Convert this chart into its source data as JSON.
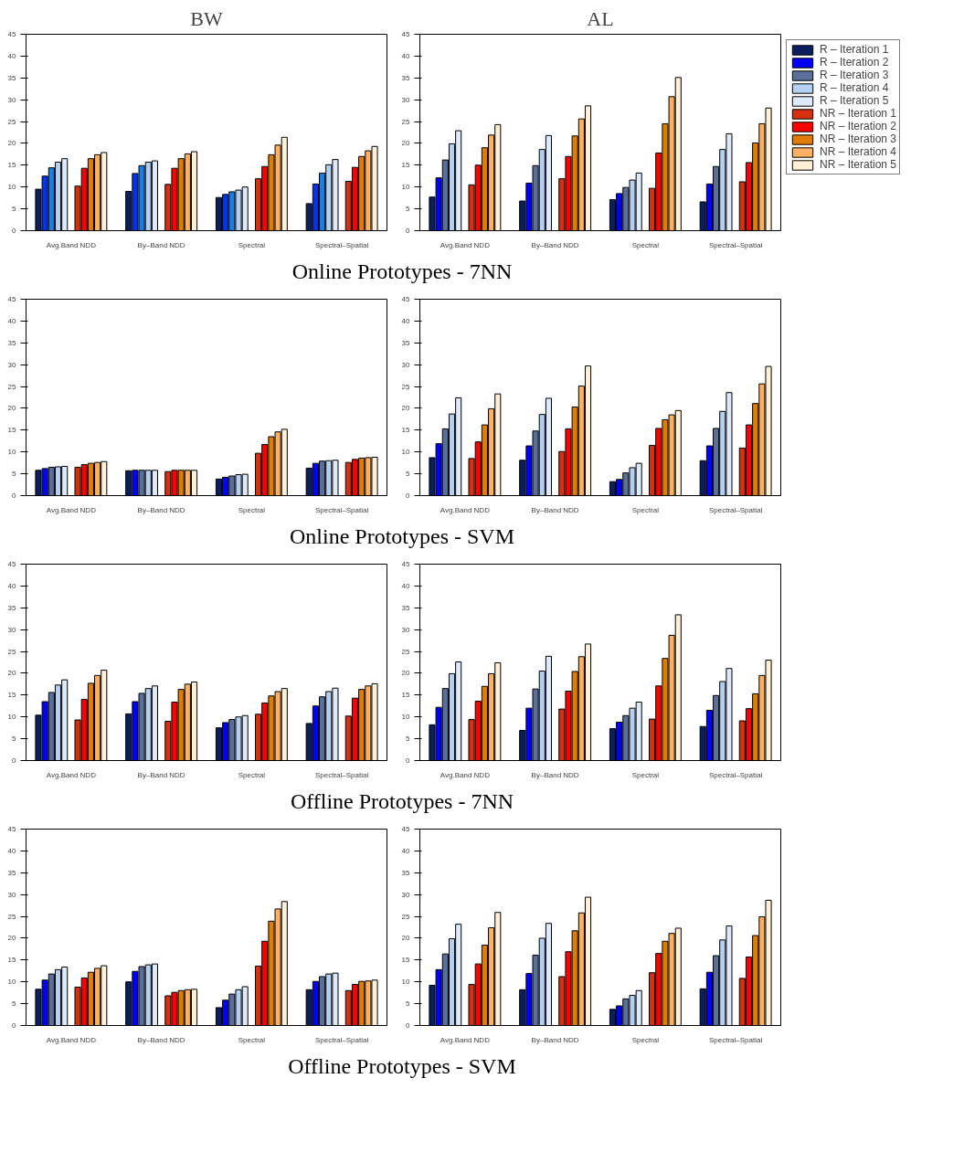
{
  "chart_data": [
    {
      "type": "bar",
      "title": "BW",
      "annotations": [
        "Online Prototypes - 7NN"
      ],
      "categories": [
        "Avg.Band NDD",
        "By–Band NDD",
        "Spectral",
        "Spectral–Spatial"
      ],
      "ylim": [
        0,
        45
      ],
      "yticks": [
        0,
        5,
        10,
        15,
        20,
        25,
        30,
        35,
        40,
        45
      ],
      "series": [
        {
          "color": "#0b1f5e",
          "values": [
            9.5,
            9.0,
            7.6,
            6.2
          ]
        },
        {
          "color": "#0033ee",
          "values": [
            12.5,
            13.1,
            8.3,
            10.7
          ]
        },
        {
          "color": "#1a7fe5",
          "values": [
            14.4,
            14.9,
            8.9,
            13.2
          ]
        },
        {
          "color": "#b4cff0",
          "values": [
            15.7,
            15.7,
            9.3,
            15.1
          ]
        },
        {
          "color": "#deeafa",
          "values": [
            16.5,
            16.0,
            10.0,
            16.3
          ]
        },
        {
          "color": "#d63010",
          "values": [
            10.2,
            10.6,
            11.9,
            11.3
          ]
        },
        {
          "color": "#ff0000",
          "values": [
            14.3,
            14.3,
            14.7,
            14.5
          ]
        },
        {
          "color": "#e07c00",
          "values": [
            16.5,
            16.5,
            17.4,
            17.0
          ]
        },
        {
          "color": "#ffb060",
          "values": [
            17.4,
            17.6,
            19.6,
            18.3
          ]
        },
        {
          "color": "#fff0d8",
          "values": [
            17.9,
            18.1,
            21.4,
            19.3
          ]
        }
      ]
    },
    {
      "type": "bar",
      "title": "AL",
      "categories": [
        "Avg.Band NDD",
        "By–Band NDD",
        "Spectral",
        "Spectral–Spatial"
      ],
      "ylim": [
        0,
        45
      ],
      "yticks": [
        0,
        5,
        10,
        15,
        20,
        25,
        30,
        35,
        40,
        45
      ],
      "legend": "right",
      "series": [
        {
          "name": "R – Iteration 1",
          "color": "#0b1f5e",
          "values": [
            7.7,
            6.8,
            7.1,
            6.6
          ]
        },
        {
          "name": "R – Iteration 2",
          "color": "#0000ff",
          "values": [
            12.1,
            10.9,
            8.5,
            10.7
          ]
        },
        {
          "name": "R – Iteration 3",
          "color": "#5b6f9b",
          "values": [
            16.2,
            14.9,
            9.9,
            14.7
          ]
        },
        {
          "name": "R – Iteration 4",
          "color": "#b4cff0",
          "values": [
            19.9,
            18.6,
            11.6,
            18.6
          ]
        },
        {
          "name": "R – Iteration 5",
          "color": "#deeafa",
          "values": [
            22.9,
            21.8,
            13.2,
            22.2
          ]
        },
        {
          "name": "NR – Iteration 1",
          "color": "#d63010",
          "values": [
            10.5,
            11.9,
            9.7,
            11.2
          ]
        },
        {
          "name": "NR – Iteration 2",
          "color": "#ff0000",
          "values": [
            15.0,
            17.0,
            17.8,
            15.6
          ]
        },
        {
          "name": "NR – Iteration 3",
          "color": "#e07c00",
          "values": [
            19.0,
            21.7,
            24.5,
            20.1
          ]
        },
        {
          "name": "NR – Iteration 4",
          "color": "#ffb060",
          "values": [
            21.9,
            25.6,
            30.7,
            24.5
          ]
        },
        {
          "name": "NR – Iteration 5",
          "color": "#fff0d8",
          "values": [
            24.3,
            28.6,
            35.1,
            28.1
          ]
        }
      ]
    },
    {
      "type": "bar",
      "annotations": [
        "Online Prototypes - SVM"
      ],
      "categories": [
        "Avg.Band NDD",
        "By–Band NDD",
        "Spectral",
        "Spectral–Spatial"
      ],
      "ylim": [
        0,
        45
      ],
      "yticks": [
        0,
        5,
        10,
        15,
        20,
        25,
        30,
        35,
        40,
        45
      ],
      "series": [
        {
          "color": "#0b1f5e",
          "values": [
            5.8,
            5.7,
            3.8,
            6.3
          ]
        },
        {
          "color": "#0000ff",
          "values": [
            6.2,
            5.8,
            4.2,
            7.4
          ]
        },
        {
          "color": "#5b6f9b",
          "values": [
            6.5,
            5.8,
            4.5,
            7.9
          ]
        },
        {
          "color": "#b4cff0",
          "values": [
            6.6,
            5.8,
            4.8,
            8.0
          ]
        },
        {
          "color": "#deeafa",
          "values": [
            6.7,
            5.8,
            4.9,
            8.1
          ]
        },
        {
          "color": "#d63010",
          "values": [
            6.5,
            5.5,
            9.7,
            7.6
          ]
        },
        {
          "color": "#ff0000",
          "values": [
            7.1,
            5.8,
            11.7,
            8.3
          ]
        },
        {
          "color": "#e07c00",
          "values": [
            7.4,
            5.8,
            13.5,
            8.6
          ]
        },
        {
          "color": "#ffb060",
          "values": [
            7.6,
            5.8,
            14.6,
            8.7
          ]
        },
        {
          "color": "#fff0d8",
          "values": [
            7.8,
            5.8,
            15.2,
            8.8
          ]
        }
      ]
    },
    {
      "type": "bar",
      "categories": [
        "Avg.Band NDD",
        "By–Band NDD",
        "Spectral",
        "Spectral–Spatial"
      ],
      "ylim": [
        0,
        45
      ],
      "yticks": [
        0,
        5,
        10,
        15,
        20,
        25,
        30,
        35,
        40,
        45
      ],
      "series": [
        {
          "color": "#0b1f5e",
          "values": [
            8.7,
            8.1,
            3.2,
            8.0
          ]
        },
        {
          "color": "#0000ff",
          "values": [
            11.9,
            11.4,
            3.7,
            11.4
          ]
        },
        {
          "color": "#5b6f9b",
          "values": [
            15.3,
            14.8,
            5.2,
            15.4
          ]
        },
        {
          "color": "#b4cff0",
          "values": [
            18.7,
            18.6,
            6.4,
            19.3
          ]
        },
        {
          "color": "#deeafa",
          "values": [
            22.4,
            22.3,
            7.4,
            23.6
          ]
        },
        {
          "color": "#d63010",
          "values": [
            8.5,
            10.1,
            11.5,
            10.9
          ]
        },
        {
          "color": "#ff0000",
          "values": [
            12.3,
            15.3,
            15.4,
            16.2
          ]
        },
        {
          "color": "#e07c00",
          "values": [
            16.2,
            20.3,
            17.4,
            21.1
          ]
        },
        {
          "color": "#ffb060",
          "values": [
            19.9,
            25.1,
            18.5,
            25.6
          ]
        },
        {
          "color": "#fff0d8",
          "values": [
            23.3,
            29.7,
            19.5,
            29.6
          ]
        }
      ]
    },
    {
      "type": "bar",
      "annotations": [
        "Offline Prototypes - 7NN"
      ],
      "categories": [
        "Avg.Band NDD",
        "By–Band NDD",
        "Spectral",
        "Spectral–Spatial"
      ],
      "ylim": [
        0,
        45
      ],
      "yticks": [
        0,
        5,
        10,
        15,
        20,
        25,
        30,
        35,
        40,
        45
      ],
      "series": [
        {
          "color": "#0b1f5e",
          "values": [
            10.4,
            10.7,
            7.5,
            8.5
          ]
        },
        {
          "color": "#0000ff",
          "values": [
            13.5,
            13.5,
            8.7,
            12.5
          ]
        },
        {
          "color": "#5b6f9b",
          "values": [
            15.6,
            15.4,
            9.4,
            14.6
          ]
        },
        {
          "color": "#b4cff0",
          "values": [
            17.3,
            16.5,
            10.0,
            15.8
          ]
        },
        {
          "color": "#deeafa",
          "values": [
            18.5,
            17.1,
            10.3,
            16.6
          ]
        },
        {
          "color": "#d63010",
          "values": [
            9.3,
            9.0,
            10.6,
            10.2
          ]
        },
        {
          "color": "#ff0000",
          "values": [
            14.0,
            13.4,
            13.2,
            14.3
          ]
        },
        {
          "color": "#e07c00",
          "values": [
            17.7,
            16.3,
            14.8,
            16.3
          ]
        },
        {
          "color": "#ffb060",
          "values": [
            19.5,
            17.5,
            15.8,
            17.1
          ]
        },
        {
          "color": "#fff0d8",
          "values": [
            20.7,
            18.0,
            16.5,
            17.6
          ]
        }
      ]
    },
    {
      "type": "bar",
      "categories": [
        "Avg.Band NDD",
        "By–Band NDD",
        "Spectral",
        "Spectral–Spatial"
      ],
      "ylim": [
        0,
        45
      ],
      "yticks": [
        0,
        5,
        10,
        15,
        20,
        25,
        30,
        35,
        40,
        45
      ],
      "series": [
        {
          "color": "#0b1f5e",
          "values": [
            8.2,
            6.9,
            7.3,
            7.8
          ]
        },
        {
          "color": "#0000ff",
          "values": [
            12.2,
            12.0,
            8.8,
            11.5
          ]
        },
        {
          "color": "#5b6f9b",
          "values": [
            16.5,
            16.4,
            10.3,
            14.9
          ]
        },
        {
          "color": "#b4cff0",
          "values": [
            19.9,
            20.5,
            12.0,
            18.1
          ]
        },
        {
          "color": "#deeafa",
          "values": [
            22.6,
            23.9,
            13.4,
            21.1
          ]
        },
        {
          "color": "#d63010",
          "values": [
            9.4,
            11.8,
            9.5,
            9.1
          ]
        },
        {
          "color": "#ff0000",
          "values": [
            13.6,
            15.9,
            17.1,
            11.9
          ]
        },
        {
          "color": "#e07c00",
          "values": [
            17.0,
            20.4,
            23.4,
            15.3
          ]
        },
        {
          "color": "#ffb060",
          "values": [
            19.9,
            23.8,
            28.7,
            19.5
          ]
        },
        {
          "color": "#fff0d8",
          "values": [
            22.4,
            26.7,
            33.4,
            23.0
          ]
        }
      ]
    },
    {
      "type": "bar",
      "annotations": [
        "Offline Prototypes - SVM"
      ],
      "categories": [
        "Avg.Band NDD",
        "By–Band NDD",
        "Spectral",
        "Spectral–Spatial"
      ],
      "ylim": [
        0,
        45
      ],
      "yticks": [
        0,
        5,
        10,
        15,
        20,
        25,
        30,
        35,
        40,
        45
      ],
      "series": [
        {
          "color": "#0b1f5e",
          "values": [
            8.3,
            10.0,
            4.1,
            8.2
          ]
        },
        {
          "color": "#0000ff",
          "values": [
            10.4,
            12.4,
            5.8,
            10.1
          ]
        },
        {
          "color": "#5b6f9b",
          "values": [
            11.8,
            13.5,
            7.2,
            11.2
          ]
        },
        {
          "color": "#b4cff0",
          "values": [
            12.8,
            13.9,
            8.2,
            11.8
          ]
        },
        {
          "color": "#deeafa",
          "values": [
            13.4,
            14.1,
            8.9,
            12.0
          ]
        },
        {
          "color": "#d63010",
          "values": [
            8.8,
            6.8,
            13.6,
            8.0
          ]
        },
        {
          "color": "#ff0000",
          "values": [
            10.9,
            7.6,
            19.3,
            9.4
          ]
        },
        {
          "color": "#e07c00",
          "values": [
            12.2,
            8.0,
            23.9,
            10.1
          ]
        },
        {
          "color": "#ffb060",
          "values": [
            13.1,
            8.2,
            26.7,
            10.2
          ]
        },
        {
          "color": "#fff0d8",
          "values": [
            13.7,
            8.3,
            28.4,
            10.4
          ]
        }
      ]
    },
    {
      "type": "bar",
      "categories": [
        "Avg.Band NDD",
        "By–Band NDD",
        "Spectral",
        "Spectral–Spatial"
      ],
      "ylim": [
        0,
        45
      ],
      "yticks": [
        0,
        5,
        10,
        15,
        20,
        25,
        30,
        35,
        40,
        45
      ],
      "series": [
        {
          "color": "#0b1f5e",
          "values": [
            9.2,
            8.2,
            3.7,
            8.4
          ]
        },
        {
          "color": "#0000ff",
          "values": [
            12.8,
            11.9,
            4.5,
            12.2
          ]
        },
        {
          "color": "#5b6f9b",
          "values": [
            16.4,
            16.1,
            6.1,
            16.0
          ]
        },
        {
          "color": "#b4cff0",
          "values": [
            19.9,
            20.0,
            6.9,
            19.6
          ]
        },
        {
          "color": "#deeafa",
          "values": [
            23.2,
            23.4,
            8.0,
            22.8
          ]
        },
        {
          "color": "#d63010",
          "values": [
            9.4,
            11.2,
            12.1,
            10.8
          ]
        },
        {
          "color": "#ff0000",
          "values": [
            14.1,
            16.9,
            16.5,
            15.7
          ]
        },
        {
          "color": "#e07c00",
          "values": [
            18.4,
            21.7,
            19.3,
            20.6
          ]
        },
        {
          "color": "#ffb060",
          "values": [
            22.4,
            25.8,
            21.1,
            24.9
          ]
        },
        {
          "color": "#fff0d8",
          "values": [
            25.9,
            29.4,
            22.3,
            28.7
          ]
        }
      ]
    }
  ]
}
